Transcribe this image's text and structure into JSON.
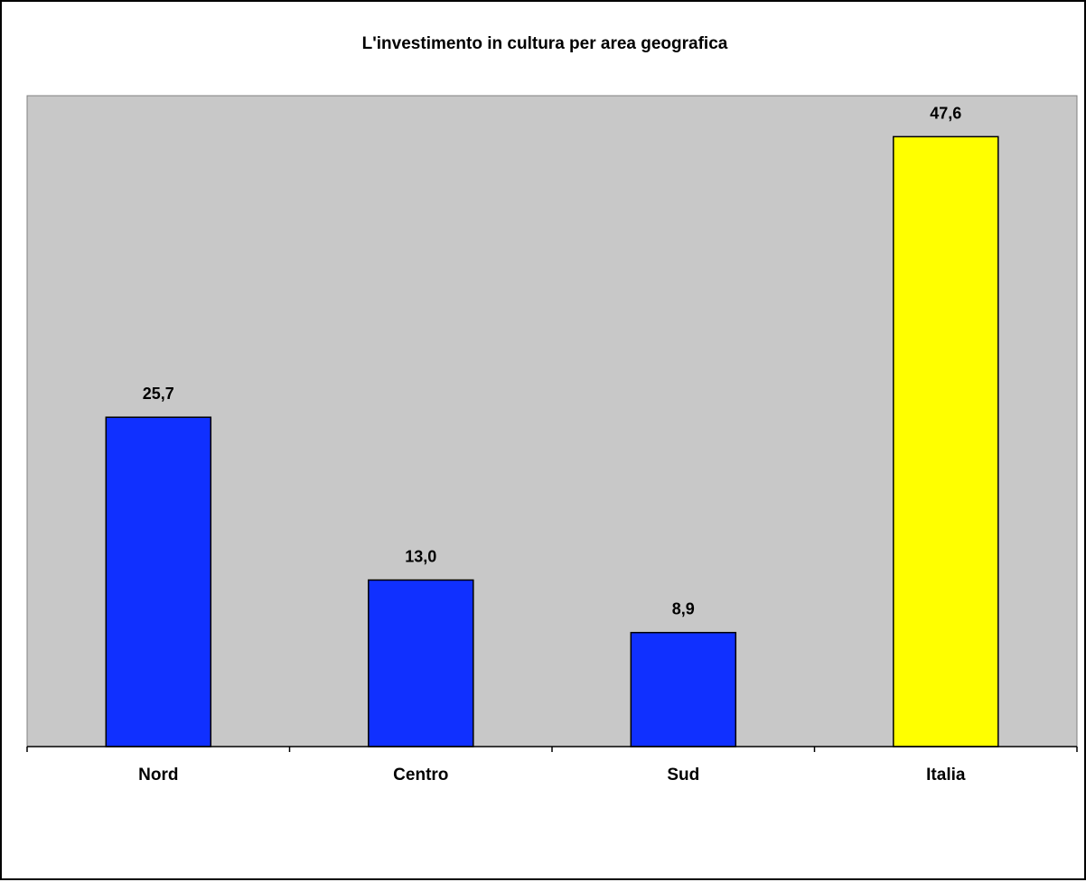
{
  "chart_data": {
    "type": "bar",
    "title": "L'investimento in cultura per area geografica",
    "xlabel": "",
    "ylabel": "",
    "categories": [
      "Nord",
      "Centro",
      "Sud",
      "Italia"
    ],
    "values": [
      25.7,
      13.0,
      8.9,
      47.6
    ],
    "data_labels": [
      "25,7",
      "13,0",
      "8,9",
      "47,6"
    ],
    "bar_colors": [
      "#1030ff",
      "#1030ff",
      "#1030ff",
      "#ffff00"
    ],
    "plot_background": "#c8c8c8",
    "ylim": [
      0,
      50
    ],
    "grid": false,
    "legend": "none"
  }
}
